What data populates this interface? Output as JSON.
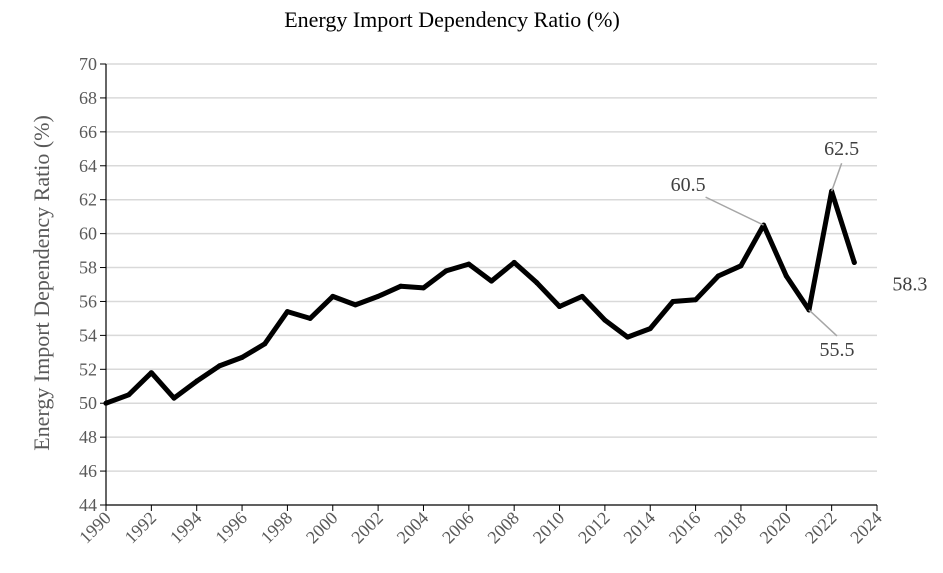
{
  "chart_data": {
    "type": "line",
    "title": "Energy Import Dependency Ratio (%)",
    "xlabel": "",
    "ylabel": "Energy Import Dependency Ratio (%)",
    "ylim": [
      44,
      70
    ],
    "xlim": [
      1990,
      2024
    ],
    "yticks": [
      44,
      46,
      48,
      50,
      52,
      54,
      56,
      58,
      60,
      62,
      64,
      66,
      68,
      70
    ],
    "xticks": [
      1990,
      1992,
      1994,
      1996,
      1998,
      2000,
      2002,
      2004,
      2006,
      2008,
      2010,
      2012,
      2014,
      2016,
      2018,
      2020,
      2022,
      2024
    ],
    "grid": true,
    "series": [
      {
        "name": "Energy Import Dependency Ratio",
        "x": [
          1990,
          1991,
          1992,
          1993,
          1994,
          1995,
          1996,
          1997,
          1998,
          1999,
          2000,
          2001,
          2002,
          2003,
          2004,
          2005,
          2006,
          2007,
          2008,
          2009,
          2010,
          2011,
          2012,
          2013,
          2014,
          2015,
          2016,
          2017,
          2018,
          2019,
          2020,
          2021,
          2022,
          2023
        ],
        "values": [
          50.0,
          50.5,
          51.8,
          50.3,
          51.3,
          52.2,
          52.7,
          53.5,
          55.4,
          55.0,
          56.3,
          55.8,
          56.3,
          56.9,
          56.8,
          57.8,
          58.2,
          57.2,
          58.3,
          57.1,
          55.7,
          56.3,
          54.9,
          53.9,
          54.4,
          56.0,
          56.1,
          57.5,
          58.1,
          60.5,
          57.5,
          55.5,
          62.5,
          58.3
        ],
        "color": "#000000"
      }
    ],
    "annotations": [
      {
        "text": "60.5",
        "x": 2019,
        "y": 60.5
      },
      {
        "text": "62.5",
        "x": 2022,
        "y": 62.5
      },
      {
        "text": "55.5",
        "x": 2021,
        "y": 55.5
      },
      {
        "text": "58.3",
        "x": 2023,
        "y": 58.3
      }
    ],
    "colors": {
      "grid": "#d9d9d9",
      "axis": "#000000",
      "text": "#595959",
      "leader": "#a6a6a6"
    }
  }
}
